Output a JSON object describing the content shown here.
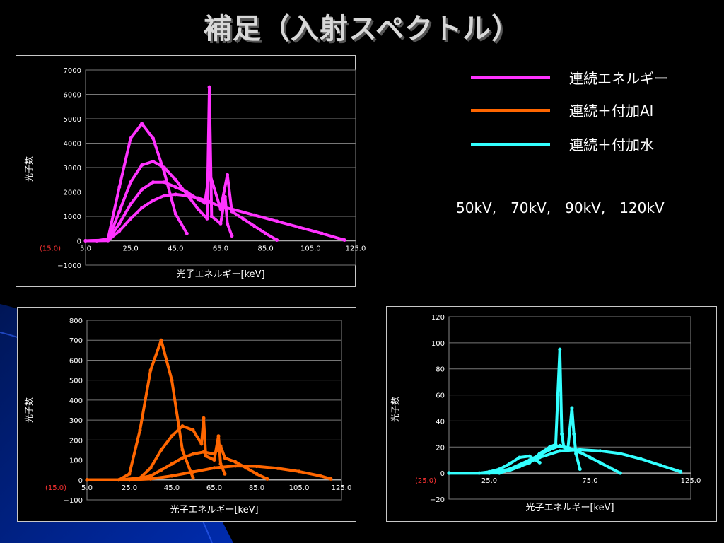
{
  "title": "補足（入射スペクトル）",
  "legend": [
    {
      "label": "連続エネルギー",
      "color": "#ff33ff"
    },
    {
      "label": "連続＋付加Al",
      "color": "#ff6600"
    },
    {
      "label": "連続＋付加水",
      "color": "#33ffff"
    }
  ],
  "kv_text": "50kV,　70kV,　90kV,　120kV",
  "chart_data": [
    {
      "type": "line",
      "xlabel": "光子エネルギー[keV]",
      "ylabel": "光子数",
      "x_ticks": [
        "(15.0)",
        "5.0",
        "25.0",
        "45.0",
        "65.0",
        "85.0",
        "105.0",
        "125.0"
      ],
      "y_ticks": [
        "7000",
        "6000",
        "5000",
        "4000",
        "3000",
        "2000",
        "1000",
        "0",
        "−1000"
      ],
      "ylim": [
        -1000,
        7000
      ],
      "xlim": [
        5,
        125
      ],
      "grid": true,
      "color": "#ff33ff",
      "series": [
        {
          "label": "50kV",
          "x": [
            5,
            10,
            15,
            20,
            25,
            30,
            35,
            40,
            45,
            50
          ],
          "values": [
            0,
            0,
            80,
            2200,
            4200,
            4800,
            4200,
            2800,
            1100,
            300
          ]
        },
        {
          "label": "70kV",
          "x": [
            5,
            15,
            20,
            25,
            30,
            35,
            40,
            45,
            50,
            55,
            59,
            60,
            61,
            65,
            67,
            68,
            70
          ],
          "values": [
            0,
            30,
            1200,
            2400,
            3100,
            3250,
            3000,
            2500,
            1900,
            1300,
            900,
            6300,
            1000,
            700,
            1800,
            700,
            200
          ]
        },
        {
          "label": "90kV",
          "x": [
            5,
            15,
            20,
            25,
            30,
            35,
            40,
            45,
            50,
            55,
            58,
            60,
            65,
            68,
            70,
            75,
            80,
            85,
            90
          ],
          "values": [
            0,
            20,
            700,
            1500,
            2100,
            2400,
            2400,
            2200,
            2000,
            1700,
            1550,
            2800,
            1300,
            2700,
            1200,
            900,
            600,
            300,
            30
          ]
        },
        {
          "label": "120kV",
          "x": [
            5,
            15,
            20,
            25,
            30,
            35,
            40,
            45,
            50,
            55,
            60,
            65,
            70,
            80,
            90,
            100,
            110,
            120
          ],
          "values": [
            0,
            10,
            400,
            900,
            1350,
            1650,
            1850,
            1900,
            1850,
            1750,
            1600,
            1400,
            1300,
            1050,
            800,
            550,
            300,
            30
          ]
        }
      ]
    },
    {
      "type": "line",
      "xlabel": "光子エネルギー[keV]",
      "ylabel": "光子数",
      "x_ticks": [
        "(15.0)",
        "5.0",
        "25.0",
        "45.0",
        "65.0",
        "85.0",
        "105.0",
        "125.0"
      ],
      "y_ticks": [
        "800",
        "700",
        "600",
        "500",
        "400",
        "300",
        "200",
        "100",
        "0",
        "−100"
      ],
      "ylim": [
        -100,
        800
      ],
      "xlim": [
        5,
        125
      ],
      "grid": true,
      "color": "#ff6600",
      "series": [
        {
          "label": "50kV",
          "x": [
            5,
            20,
            25,
            30,
            35,
            40,
            45,
            50,
            55
          ],
          "values": [
            0,
            0,
            30,
            250,
            550,
            700,
            500,
            150,
            10
          ]
        },
        {
          "label": "70kV",
          "x": [
            5,
            20,
            30,
            35,
            40,
            45,
            50,
            55,
            59,
            60,
            61,
            65,
            67,
            68,
            70
          ],
          "values": [
            0,
            0,
            10,
            60,
            150,
            220,
            270,
            250,
            180,
            310,
            120,
            100,
            220,
            80,
            30
          ]
        },
        {
          "label": "90kV",
          "x": [
            5,
            25,
            35,
            40,
            45,
            50,
            55,
            60,
            65,
            68,
            70,
            75,
            80,
            85,
            90
          ],
          "values": [
            0,
            0,
            20,
            50,
            80,
            110,
            130,
            140,
            130,
            170,
            110,
            90,
            60,
            30,
            5
          ]
        },
        {
          "label": "120kV",
          "x": [
            5,
            25,
            35,
            45,
            55,
            65,
            75,
            85,
            95,
            105,
            115,
            120
          ],
          "values": [
            0,
            0,
            5,
            20,
            40,
            60,
            70,
            68,
            58,
            42,
            20,
            5
          ]
        }
      ]
    },
    {
      "type": "line",
      "xlabel": "光子エネルギー[keV]",
      "ylabel": "光子数",
      "x_ticks": [
        "(25.0)",
        "25.0",
        "75.0",
        "125.0"
      ],
      "y_ticks": [
        "120",
        "100",
        "80",
        "60",
        "40",
        "20",
        "0",
        "−20"
      ],
      "ylim": [
        -20,
        120
      ],
      "xlim": [
        5,
        125
      ],
      "grid": true,
      "color": "#33ffff",
      "series": [
        {
          "label": "50kV",
          "x": [
            5,
            20,
            25,
            30,
            35,
            40,
            45,
            50
          ],
          "values": [
            0,
            0,
            1,
            3,
            7,
            12,
            13,
            8
          ]
        },
        {
          "label": "70kV",
          "x": [
            5,
            25,
            35,
            45,
            50,
            55,
            58,
            59,
            60,
            61,
            62,
            64,
            66,
            67,
            68,
            70
          ],
          "values": [
            0,
            0,
            2,
            8,
            15,
            20,
            22,
            60,
            95,
            30,
            20,
            18,
            50,
            30,
            15,
            3
          ]
        },
        {
          "label": "90kV",
          "x": [
            5,
            25,
            35,
            45,
            55,
            60,
            65,
            70,
            75,
            80,
            85,
            90
          ],
          "values": [
            0,
            0,
            3,
            10,
            18,
            21,
            19,
            16,
            12,
            8,
            4,
            0
          ]
        },
        {
          "label": "120kV",
          "x": [
            5,
            30,
            40,
            50,
            60,
            70,
            80,
            90,
            100,
            110,
            120
          ],
          "values": [
            0,
            0,
            5,
            12,
            17,
            18,
            17,
            15,
            11,
            6,
            1
          ]
        }
      ]
    }
  ]
}
